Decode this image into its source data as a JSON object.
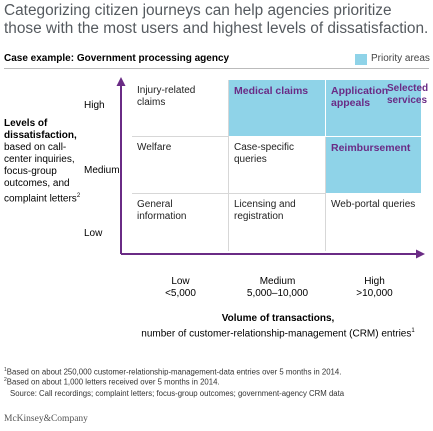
{
  "title": "Categorizing citizen journeys can help agencies prioritize those with the most users and highest levels of dissatisfaction.",
  "case_example": "Case example: Government processing agency",
  "legend": {
    "label": "Priority areas",
    "color": "#8fd3e8"
  },
  "accent_color": "#6a2b85",
  "y_axis": {
    "label_bold": "Levels of dissatisfaction,",
    "label_rest": "based on call-center inquiries, focus-group outcomes, and complaint letters",
    "label_sup": "2",
    "ticks": [
      "High",
      "Medium",
      "Low"
    ]
  },
  "x_axis": {
    "label_bold": "Volume of transactions,",
    "label_rest": "number of customer-relationship-management (CRM) entries",
    "label_sup": "1",
    "ticks": [
      {
        "line1": "Low",
        "line2": "<5,000"
      },
      {
        "line1": "Medium",
        "line2": "5,000–10,000"
      },
      {
        "line1": "High",
        "line2": ">10,000"
      }
    ]
  },
  "cells": [
    {
      "row": "High",
      "col": "Low",
      "text": "Injury-related claims",
      "priority": false
    },
    {
      "row": "High",
      "col": "Medium",
      "text": "Medical claims",
      "priority": true
    },
    {
      "row": "High",
      "col": "High",
      "text": "Application appeals",
      "priority": true
    },
    {
      "row": "Medium",
      "col": "Low",
      "text": "Welfare",
      "priority": false
    },
    {
      "row": "Medium",
      "col": "Medium",
      "text": "Case-specific queries",
      "priority": false
    },
    {
      "row": "Medium",
      "col": "High",
      "text": "Reimbursement",
      "priority": true
    },
    {
      "row": "Low",
      "col": "Low",
      "text": "General information",
      "priority": false
    },
    {
      "row": "Low",
      "col": "Medium",
      "text": "Licensing and registration",
      "priority": false
    },
    {
      "row": "Low",
      "col": "High",
      "text": "Web-portal queries",
      "priority": false
    }
  ],
  "selected_services": "Selected services",
  "footnotes": [
    "Based on  about 250,000 customer-relationship-management-data entries over 5 months in 2014.",
    "Based on about 1,000 letters received over 5 months in 2014."
  ],
  "source": "Source: Call recordings; complaint letters; focus-group outcomes; government-agency CRM data",
  "brand": "McKinsey&Company"
}
